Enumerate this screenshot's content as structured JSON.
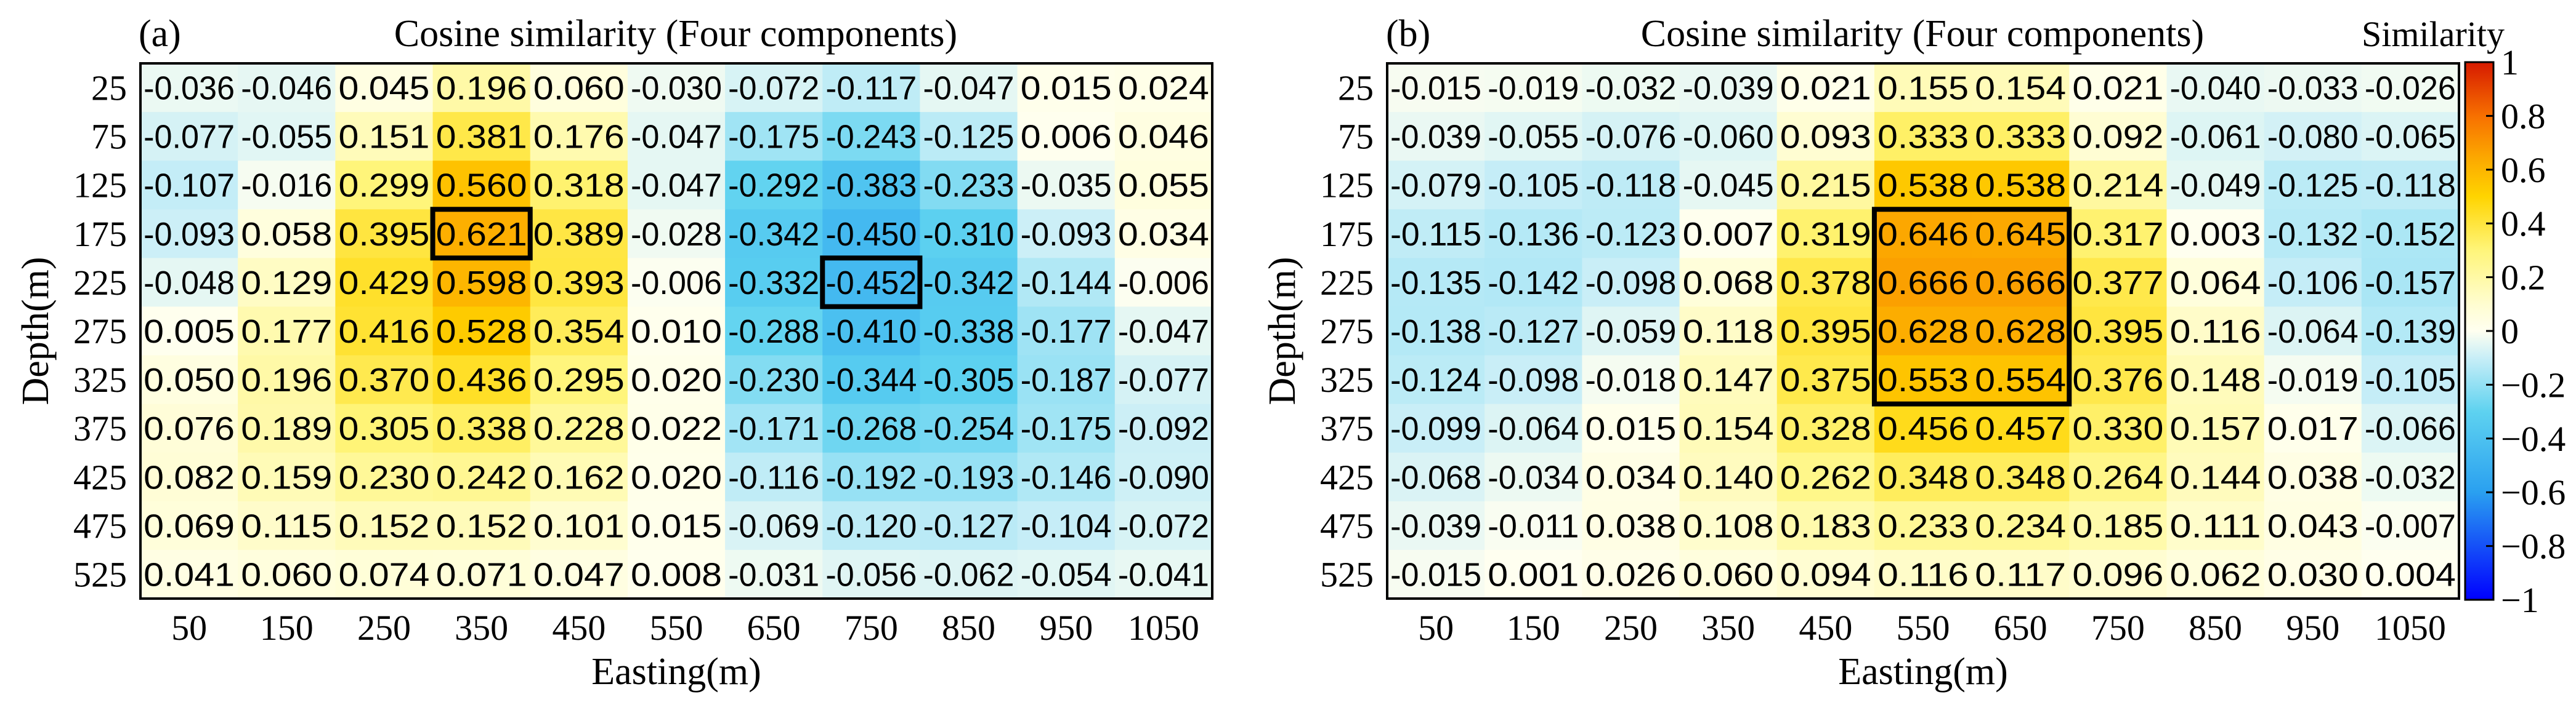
{
  "chart_data": [
    {
      "type": "heatmap",
      "panel_label": "(a)",
      "title": "Cosine similarity (Four components)",
      "xlabel": "Easting(m)",
      "ylabel": "Depth(m)",
      "x": [
        "50",
        "150",
        "250",
        "350",
        "450",
        "550",
        "650",
        "750",
        "850",
        "950",
        "1050"
      ],
      "y": [
        "25",
        "75",
        "125",
        "175",
        "225",
        "275",
        "325",
        "375",
        "425",
        "475",
        "525"
      ],
      "values": [
        [
          "-0.036",
          "-0.046",
          "0.045",
          "0.196",
          "0.060",
          "-0.030",
          "-0.072",
          "-0.117",
          "-0.047",
          "0.015",
          "0.024"
        ],
        [
          "-0.077",
          "-0.055",
          "0.151",
          "0.381",
          "0.176",
          "-0.047",
          "-0.175",
          "-0.243",
          "-0.125",
          "0.006",
          "0.046"
        ],
        [
          "-0.107",
          "-0.016",
          "0.299",
          "0.560",
          "0.318",
          "-0.047",
          "-0.292",
          "-0.383",
          "-0.233",
          "-0.035",
          "0.055"
        ],
        [
          "-0.093",
          "0.058",
          "0.395",
          "0.621",
          "0.389",
          "-0.028",
          "-0.342",
          "-0.450",
          "-0.310",
          "-0.093",
          "0.034"
        ],
        [
          "-0.048",
          "0.129",
          "0.429",
          "0.598",
          "0.393",
          "-0.006",
          "-0.332",
          "-0.452",
          "-0.342",
          "-0.144",
          "-0.006"
        ],
        [
          "0.005",
          "0.177",
          "0.416",
          "0.528",
          "0.354",
          "0.010",
          "-0.288",
          "-0.410",
          "-0.338",
          "-0.177",
          "-0.047"
        ],
        [
          "0.050",
          "0.196",
          "0.370",
          "0.436",
          "0.295",
          "0.020",
          "-0.230",
          "-0.344",
          "-0.305",
          "-0.187",
          "-0.077"
        ],
        [
          "0.076",
          "0.189",
          "0.305",
          "0.338",
          "0.228",
          "0.022",
          "-0.171",
          "-0.268",
          "-0.254",
          "-0.175",
          "-0.092"
        ],
        [
          "0.082",
          "0.159",
          "0.230",
          "0.242",
          "0.162",
          "0.020",
          "-0.116",
          "-0.192",
          "-0.193",
          "-0.146",
          "-0.090"
        ],
        [
          "0.069",
          "0.115",
          "0.152",
          "0.152",
          "0.101",
          "0.015",
          "-0.069",
          "-0.120",
          "-0.127",
          "-0.104",
          "-0.072"
        ],
        [
          "0.041",
          "0.060",
          "0.074",
          "0.071",
          "0.047",
          "0.008",
          "-0.031",
          "-0.056",
          "-0.062",
          "-0.054",
          "-0.041"
        ]
      ],
      "highlight_boxes": [
        {
          "x_range": [
            "350",
            "350"
          ],
          "y_range": [
            "175",
            "175"
          ]
        },
        {
          "x_range": [
            "750",
            "750"
          ],
          "y_range": [
            "225",
            "225"
          ]
        }
      ],
      "color_range": [
        -1,
        1
      ]
    },
    {
      "type": "heatmap",
      "panel_label": "(b)",
      "title": "Cosine similarity (Four components)",
      "xlabel": "Easting(m)",
      "ylabel": "Depth(m)",
      "x": [
        "50",
        "150",
        "250",
        "350",
        "450",
        "550",
        "650",
        "750",
        "850",
        "950",
        "1050"
      ],
      "y": [
        "25",
        "75",
        "125",
        "175",
        "225",
        "275",
        "325",
        "375",
        "425",
        "475",
        "525"
      ],
      "values": [
        [
          "-0.015",
          "-0.019",
          "-0.032",
          "-0.039",
          "0.021",
          "0.155",
          "0.154",
          "0.021",
          "-0.040",
          "-0.033",
          "-0.026"
        ],
        [
          "-0.039",
          "-0.055",
          "-0.076",
          "-0.060",
          "0.093",
          "0.333",
          "0.333",
          "0.092",
          "-0.061",
          "-0.080",
          "-0.065"
        ],
        [
          "-0.079",
          "-0.105",
          "-0.118",
          "-0.045",
          "0.215",
          "0.538",
          "0.538",
          "0.214",
          "-0.049",
          "-0.125",
          "-0.118"
        ],
        [
          "-0.115",
          "-0.136",
          "-0.123",
          "0.007",
          "0.319",
          "0.646",
          "0.645",
          "0.317",
          "0.003",
          "-0.132",
          "-0.152"
        ],
        [
          "-0.135",
          "-0.142",
          "-0.098",
          "0.068",
          "0.378",
          "0.666",
          "0.666",
          "0.377",
          "0.064",
          "-0.106",
          "-0.157"
        ],
        [
          "-0.138",
          "-0.127",
          "-0.059",
          "0.118",
          "0.395",
          "0.628",
          "0.628",
          "0.395",
          "0.116",
          "-0.064",
          "-0.139"
        ],
        [
          "-0.124",
          "-0.098",
          "-0.018",
          "0.147",
          "0.375",
          "0.553",
          "0.554",
          "0.376",
          "0.148",
          "-0.019",
          "-0.105"
        ],
        [
          "-0.099",
          "-0.064",
          "0.015",
          "0.154",
          "0.328",
          "0.456",
          "0.457",
          "0.330",
          "0.157",
          "0.017",
          "-0.066"
        ],
        [
          "-0.068",
          "-0.034",
          "0.034",
          "0.140",
          "0.262",
          "0.348",
          "0.348",
          "0.264",
          "0.144",
          "0.038",
          "-0.032"
        ],
        [
          "-0.039",
          "-0.011",
          "0.038",
          "0.108",
          "0.183",
          "0.233",
          "0.234",
          "0.185",
          "0.111",
          "0.043",
          "-0.007"
        ],
        [
          "-0.015",
          "0.001",
          "0.026",
          "0.060",
          "0.094",
          "0.116",
          "0.117",
          "0.096",
          "0.062",
          "0.030",
          "0.004"
        ]
      ],
      "highlight_boxes": [
        {
          "x_range": [
            "550",
            "650"
          ],
          "y_range": [
            "175",
            "325"
          ]
        }
      ],
      "color_range": [
        -1,
        1
      ]
    }
  ],
  "colorbar": {
    "title": "Similarity",
    "ticks": [
      {
        "value": 1,
        "label": "1"
      },
      {
        "value": 0.8,
        "label": "0.8"
      },
      {
        "value": 0.6,
        "label": "0.6"
      },
      {
        "value": 0.4,
        "label": "0.4"
      },
      {
        "value": 0.2,
        "label": "0.2"
      },
      {
        "value": 0,
        "label": "0"
      },
      {
        "value": -0.2,
        "label": "−0.2"
      },
      {
        "value": -0.4,
        "label": "−0.4"
      },
      {
        "value": -0.6,
        "label": "−0.6"
      },
      {
        "value": -0.8,
        "label": "−0.8"
      },
      {
        "value": -1,
        "label": "−1"
      }
    ],
    "colors": [
      {
        "v": -1,
        "c": "#0000ff"
      },
      {
        "v": -0.6,
        "c": "#2aa0f0"
      },
      {
        "v": -0.3,
        "c": "#5ed2f0"
      },
      {
        "v": -0.1,
        "c": "#c8eef7"
      },
      {
        "v": 0,
        "c": "#fffff0"
      },
      {
        "v": 0.1,
        "c": "#fffdd0"
      },
      {
        "v": 0.3,
        "c": "#fff57a"
      },
      {
        "v": 0.5,
        "c": "#ffd400"
      },
      {
        "v": 0.65,
        "c": "#fca600"
      },
      {
        "v": 0.8,
        "c": "#f77000"
      },
      {
        "v": 1,
        "c": "#d61a00"
      }
    ]
  }
}
